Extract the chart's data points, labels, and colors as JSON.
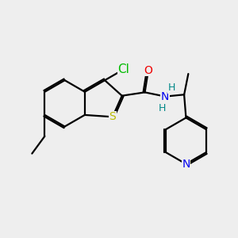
{
  "background_color": "#eeeeee",
  "bond_color": "#000000",
  "bond_width": 1.6,
  "atom_colors": {
    "Cl": "#00bb00",
    "S": "#bbbb00",
    "O": "#ee0000",
    "N": "#0000ee",
    "H": "#008888",
    "C": "#000000"
  },
  "font_size_atom": 10,
  "font_size_h": 9
}
